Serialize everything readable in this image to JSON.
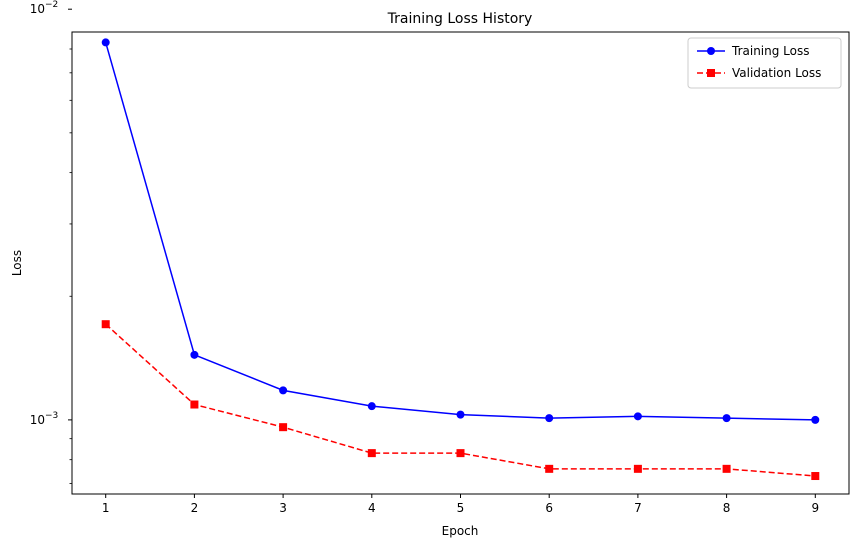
{
  "chart_data": {
    "type": "line",
    "title": "Training Loss History",
    "xlabel": "Epoch",
    "ylabel": "Loss",
    "yscale": "log",
    "xlim": [
      0.62,
      9.38
    ],
    "ylim": [
      0.00066,
      0.0088
    ],
    "x": [
      1,
      2,
      3,
      4,
      5,
      6,
      7,
      8,
      9
    ],
    "x_ticks": [
      1,
      2,
      3,
      4,
      5,
      6,
      7,
      8,
      9
    ],
    "x_tick_labels": [
      "1",
      "2",
      "3",
      "4",
      "5",
      "6",
      "7",
      "8",
      "9"
    ],
    "y_major_ticks": [
      {
        "value": 0.001,
        "base": "10",
        "exp": "−3"
      },
      {
        "value": 0.01,
        "base": "10",
        "exp": "−2"
      }
    ],
    "y_minor_ticks": [
      0.0007,
      0.0008,
      0.0009,
      0.002,
      0.003,
      0.004,
      0.005,
      0.006,
      0.007,
      0.008
    ],
    "grid": false,
    "legend_position": "top-right",
    "series": [
      {
        "name": "Training Loss",
        "values": [
          0.0083,
          0.00144,
          0.00118,
          0.00108,
          0.00103,
          0.00101,
          0.00102,
          0.00101,
          0.001
        ],
        "color": "#0000ff",
        "line_style": "solid",
        "marker": "circle"
      },
      {
        "name": "Validation Loss",
        "values": [
          0.00171,
          0.00109,
          0.00096,
          0.00083,
          0.00083,
          0.00076,
          0.00076,
          0.00076,
          0.00073
        ],
        "color": "#ff0000",
        "line_style": "dashed",
        "marker": "square"
      }
    ]
  }
}
